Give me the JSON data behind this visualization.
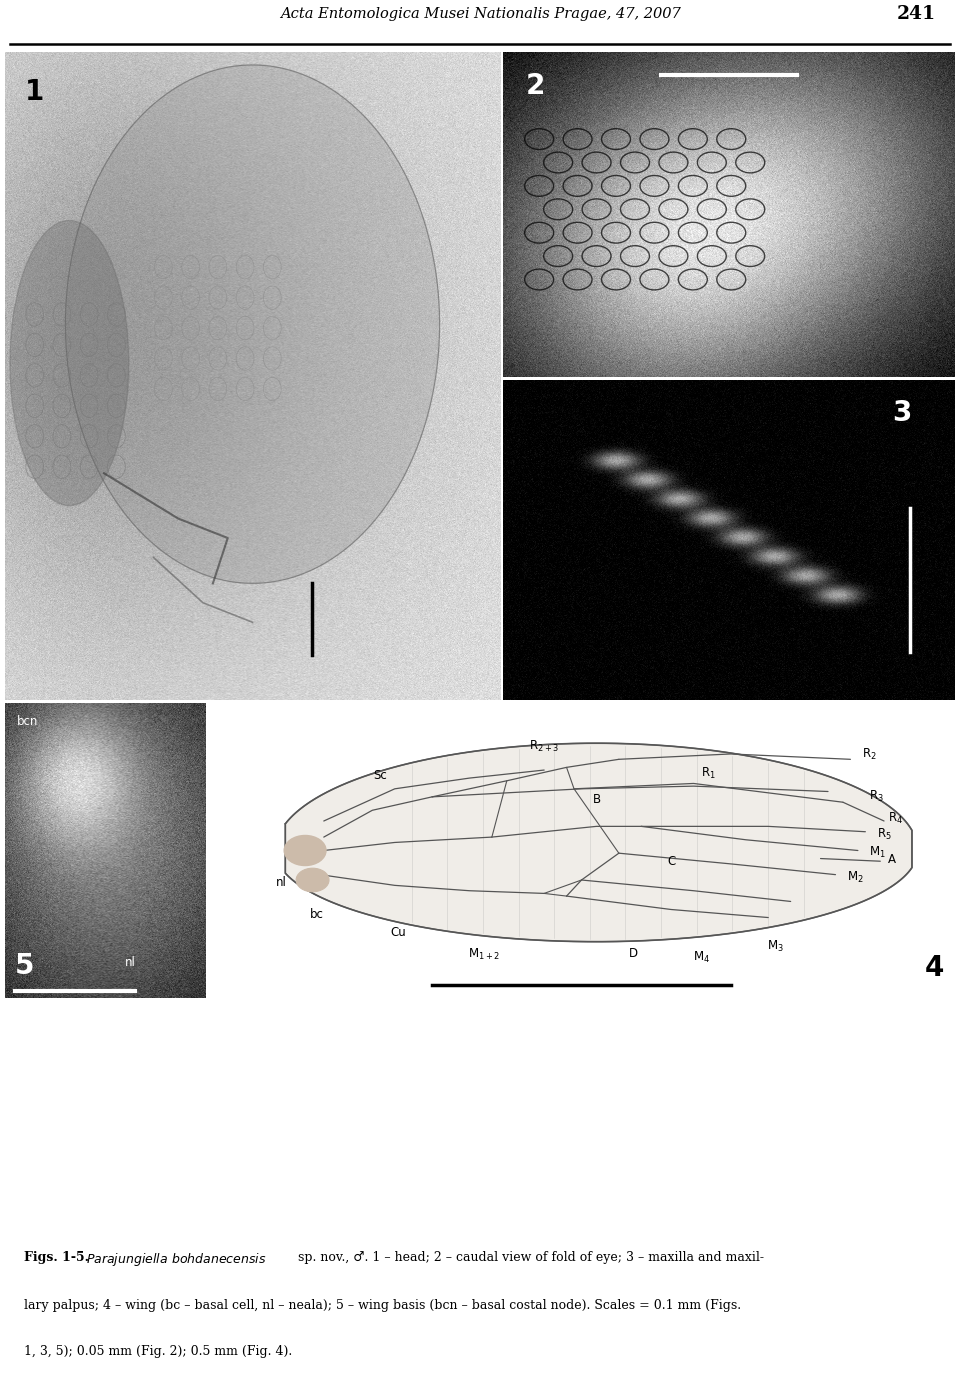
{
  "title": "Acta Entomologica Musei Nationalis Pragae, 47, 2007",
  "page_number": "241",
  "fig1_label": "1",
  "fig2_label": "2",
  "fig3_label": "3",
  "fig4_label": "4",
  "fig5_label": "5",
  "bg_color": "#ffffff",
  "text_color": "#000000",
  "header_fontsize": 10.5,
  "caption_fontsize": 9.0,
  "fig1_bg": 0.82,
  "fig2_bg": 0.08,
  "fig3_bg": 0.05,
  "fig5_bg": 0.25,
  "wing_bg": 0.97,
  "caption_line1": "Figs. 1-5. ",
  "caption_italic": "Parajungiella bohdanecensis",
  "caption_rest": " sp. nov., ♂. 1 – head; 2 – caudal view of fold of eye; 3 – maxilla and maxil-",
  "caption_line2": "lary palpus; 4 – wing (bc – basal cell, nl – neala); 5 – wing basis (bcn – basal costal node). Scales = 0.1 mm (Figs.",
  "caption_line3": "1, 3, 5); 0.05 mm (Fig. 2); 0.5 mm (Fig. 4)."
}
